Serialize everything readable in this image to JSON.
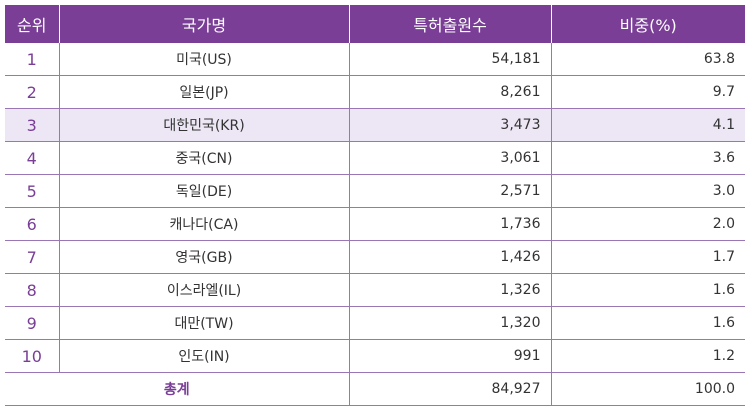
{
  "header": {
    "rank": "순위",
    "country": "국가명",
    "count": "특허출원수",
    "ratio": "비중(%)"
  },
  "colors": {
    "header_bg": "#7a3e97",
    "highlight_row_bg": "#ede6f4",
    "accent_text": "#7a3e97",
    "row_border": "#9a76b4"
  },
  "highlight_row_index": 2,
  "rows": [
    {
      "rank": "1",
      "country": "미국(US)",
      "count": "54,181",
      "ratio": "63.8"
    },
    {
      "rank": "2",
      "country": "일본(JP)",
      "count": "8,261",
      "ratio": "9.7"
    },
    {
      "rank": "3",
      "country": "대한민국(KR)",
      "count": "3,473",
      "ratio": "4.1"
    },
    {
      "rank": "4",
      "country": "중국(CN)",
      "count": "3,061",
      "ratio": "3.6"
    },
    {
      "rank": "5",
      "country": "독일(DE)",
      "count": "2,571",
      "ratio": "3.0"
    },
    {
      "rank": "6",
      "country": "캐나다(CA)",
      "count": "1,736",
      "ratio": "2.0"
    },
    {
      "rank": "7",
      "country": "영국(GB)",
      "count": "1,426",
      "ratio": "1.7"
    },
    {
      "rank": "8",
      "country": "이스라엘(IL)",
      "count": "1,326",
      "ratio": "1.6"
    },
    {
      "rank": "9",
      "country": "대만(TW)",
      "count": "1,320",
      "ratio": "1.6"
    },
    {
      "rank": "10",
      "country": "인도(IN)",
      "count": "991",
      "ratio": "1.2"
    }
  ],
  "total": {
    "label": "총계",
    "count": "84,927",
    "ratio": "100.0"
  }
}
